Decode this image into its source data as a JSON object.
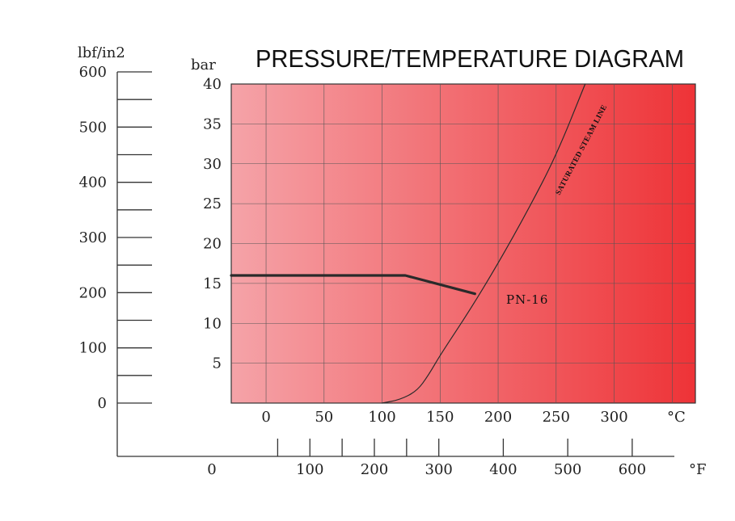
{
  "chart_data": {
    "type": "line",
    "title": "PRESSURE/TEMPERATURE DIAGRAM",
    "ylabel_left": "lbf/in2",
    "ylabel_right": "bar",
    "x_unit_celsius": "°C",
    "x_unit_fahrenheit": "°F",
    "ylim_bar": [
      0,
      40
    ],
    "xlim_celsius": [
      -30,
      370
    ],
    "y_ticks_bar": [
      "5",
      "10",
      "15",
      "20",
      "25",
      "30",
      "35",
      "40"
    ],
    "y_ticks_psi": [
      "0",
      "100",
      "200",
      "300",
      "400",
      "500",
      "600"
    ],
    "x_ticks_celsius": [
      "0",
      "50",
      "100",
      "150",
      "200",
      "250",
      "300"
    ],
    "x_ticks_fahrenheit": [
      "0",
      "100",
      "200",
      "300",
      "400",
      "500",
      "600"
    ],
    "grid": true,
    "background_gradient": [
      "#f5a3a8",
      "#ee3337"
    ],
    "series": [
      {
        "name": "PN-16",
        "color": "#2a2a2a",
        "x": [
          -30,
          120,
          180
        ],
        "y": [
          16,
          16,
          13.7
        ]
      },
      {
        "name": "SATURATED STEAM LINE",
        "color": "#2a2a2a",
        "x": [
          100,
          115,
          130,
          140,
          150,
          175,
          200,
          225,
          250,
          275
        ],
        "y": [
          0,
          0.4,
          1.5,
          3.5,
          6,
          11.5,
          17.5,
          24,
          31,
          40
        ]
      }
    ]
  }
}
